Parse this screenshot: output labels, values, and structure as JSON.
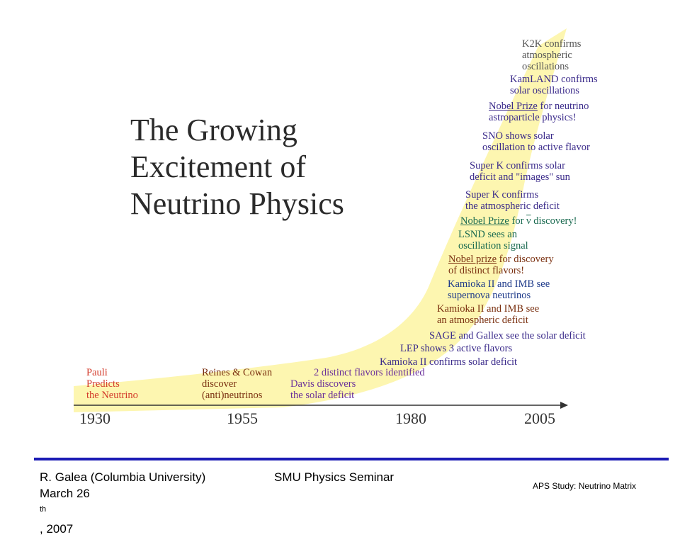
{
  "title": {
    "line1": "The Growing",
    "line2": "Excitement of",
    "line3": "Neutrino Physics"
  },
  "years": [
    "1930",
    "1955",
    "1980",
    "2005"
  ],
  "events": {
    "pauli": {
      "l1": "Pauli",
      "l2": "Predicts",
      "l3": "the Neutrino",
      "color": "#d33a2a"
    },
    "reines": {
      "l1": "Reines & Cowan",
      "l2": "discover",
      "l3": "(anti)neutrinos",
      "color": "#7a3010"
    },
    "two_flavors": {
      "text": "2 distinct flavors identified",
      "color": "#6a2f9a"
    },
    "davis": {
      "l1": "Davis discovers",
      "l2": "the solar deficit",
      "color": "#6a2f9a"
    },
    "kamioka_solar": {
      "text": "Kamioka II confirms solar deficit",
      "color": "#3a2a8a"
    },
    "lep": {
      "text": "LEP shows 3 active flavors",
      "color": "#3a2a8a"
    },
    "sage": {
      "text": "SAGE and Gallex see the solar deficit",
      "color": "#3a2a8a"
    },
    "kamioka_atm": {
      "l1": "Kamioka II and IMB see",
      "l2": "an atmospheric deficit",
      "color": "#7a3010"
    },
    "supernova": {
      "l1": "Kamioka II and IMB see",
      "l2": "supernova neutrinos",
      "color": "#1e3a8a"
    },
    "nobel_flavors": {
      "link": "Nobel prize",
      "rest": " for discovery",
      "l2": "of distinct  flavors!",
      "color": "#7a3010"
    },
    "lsnd": {
      "l1": "LSND sees an",
      "l2": "oscillation signal",
      "color": "#1a6a50"
    },
    "nobel_nubar": {
      "link": "Nobel Prize",
      "rest_pre": " for ",
      "nubar": "ν",
      "rest_post": " discovery!",
      "color": "#1a6a50"
    },
    "superk_atm": {
      "l1": "Super K confirms",
      "l2": "the atmospheric deficit",
      "color": "#3a2a8a"
    },
    "superk_solar": {
      "l1": "Super K confirms solar",
      "l2": "deficit and \"images\" sun",
      "color": "#3a2a8a"
    },
    "sno": {
      "l1": "SNO shows solar",
      "l2": "oscillation to active flavor",
      "color": "#3a2a8a"
    },
    "nobel_astro": {
      "link": "Nobel Prize",
      "rest": " for neutrino",
      "l2": "astroparticle physics!",
      "color": "#3a2a8a"
    },
    "kamland": {
      "l1": "KamLAND confirms",
      "l2": "solar oscillations",
      "color": "#3a2a8a"
    },
    "k2k": {
      "l1": "K2K confirms",
      "l2": "atmospheric",
      "l3": "oscillations",
      "color": "#555555"
    }
  },
  "colors": {
    "highlight": "#fdf6b0",
    "axis": "#333333",
    "rule": "#1a1ab4"
  },
  "footer": {
    "author": "R. Galea (Columbia University)",
    "date_pre": "March 26",
    "date_sup": "th",
    "date_post": ", 2007",
    "seminar": "SMU Physics Seminar",
    "study": "APS Study: Neutrino Matrix"
  }
}
